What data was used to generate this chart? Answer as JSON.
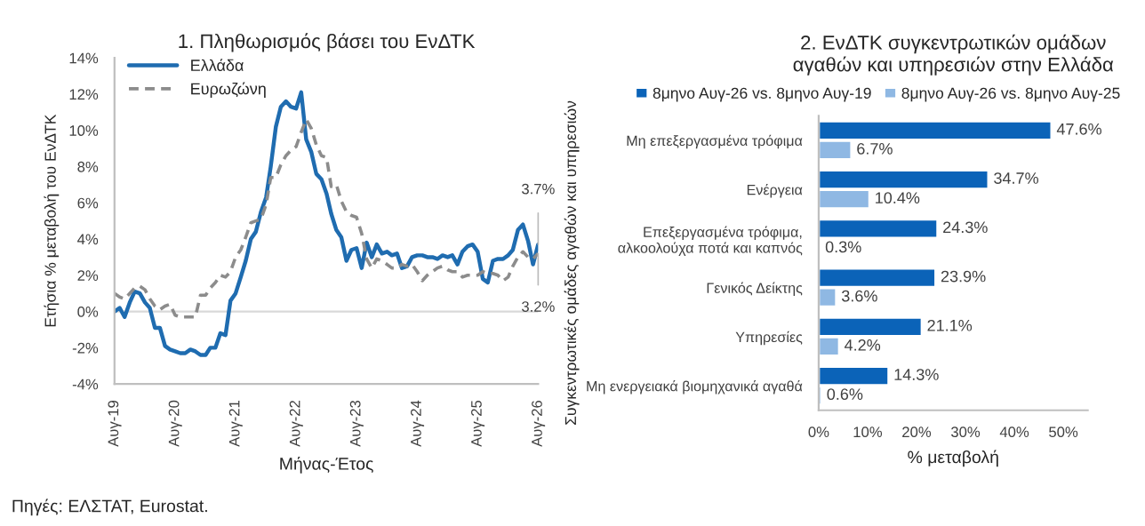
{
  "chart_data": [
    {
      "type": "line",
      "title": "1. Πληθωρισμός βάσει του ΕνΔΤΚ",
      "xlabel": "Μήνας-Έτος",
      "ylabel": "Ετήσια % μεταβολή του ΕνΔΤΚ",
      "x": [
        "2019-08",
        "2019-09",
        "2019-10",
        "2019-11",
        "2019-12",
        "2020-01",
        "2020-02",
        "2020-03",
        "2020-04",
        "2020-05",
        "2020-06",
        "2020-07",
        "2020-08",
        "2020-09",
        "2020-10",
        "2020-11",
        "2020-12",
        "2021-01",
        "2021-02",
        "2021-03",
        "2021-04",
        "2021-05",
        "2021-06",
        "2021-07",
        "2021-08",
        "2021-09",
        "2021-10",
        "2021-11",
        "2021-12",
        "2022-01",
        "2022-02",
        "2022-03",
        "2022-04",
        "2022-05",
        "2022-06",
        "2022-07",
        "2022-08",
        "2022-09",
        "2022-10",
        "2022-11",
        "2022-12",
        "2023-01",
        "2023-02",
        "2023-03",
        "2023-04",
        "2023-05",
        "2023-06",
        "2023-07",
        "2023-08",
        "2023-09",
        "2023-10",
        "2023-11",
        "2023-12",
        "2024-01",
        "2024-02",
        "2024-03",
        "2024-04",
        "2024-05",
        "2024-06",
        "2024-07",
        "2024-08",
        "2024-09",
        "2024-10",
        "2024-11",
        "2024-12",
        "2025-01",
        "2025-02",
        "2025-03",
        "2025-04",
        "2025-05",
        "2025-06",
        "2025-07",
        "2025-08",
        "2025-09",
        "2025-10",
        "2025-11",
        "2025-12",
        "2026-01",
        "2026-02",
        "2026-03",
        "2026-04",
        "2026-05",
        "2026-06",
        "2026-07",
        "2026-08"
      ],
      "series": [
        {
          "name": "Ελλάδα",
          "color": "#1f6cb0",
          "line_style": "solid",
          "values": [
            0.0,
            0.2,
            -0.3,
            0.5,
            1.1,
            1.0,
            0.5,
            0.2,
            -0.9,
            -0.9,
            -1.9,
            -2.1,
            -2.2,
            -2.3,
            -2.3,
            -2.1,
            -2.2,
            -2.4,
            -2.4,
            -2.0,
            -2.0,
            -1.2,
            -1.3,
            0.6,
            1.0,
            1.9,
            2.8,
            4.0,
            4.4,
            5.5,
            6.3,
            8.0,
            10.2,
            11.3,
            11.6,
            11.3,
            11.2,
            12.1,
            9.5,
            8.8,
            7.6,
            7.3,
            6.5,
            5.4,
            4.5,
            4.1,
            2.8,
            3.4,
            3.5,
            2.4,
            3.8,
            3.0,
            3.7,
            3.2,
            3.3,
            3.1,
            3.2,
            2.4,
            2.5,
            3.0,
            3.1,
            3.1,
            3.0,
            3.0,
            2.9,
            3.1,
            3.0,
            3.1,
            2.6,
            3.3,
            3.6,
            3.7,
            3.3,
            1.8,
            1.6,
            2.8,
            2.9,
            2.9,
            3.1,
            3.4,
            4.5,
            4.8,
            3.9,
            2.6,
            3.7
          ]
        },
        {
          "name": "Ευρωζώνη",
          "color": "#8c8c8c",
          "line_style": "dashed",
          "values": [
            1.0,
            0.8,
            0.7,
            1.0,
            1.3,
            1.4,
            1.2,
            0.7,
            0.3,
            0.1,
            0.3,
            0.4,
            -0.2,
            -0.3,
            -0.3,
            -0.3,
            -0.3,
            0.9,
            0.9,
            1.3,
            1.6,
            2.0,
            1.9,
            2.2,
            3.0,
            3.4,
            4.1,
            4.9,
            5.0,
            5.1,
            5.9,
            7.4,
            7.4,
            8.1,
            8.6,
            8.9,
            9.1,
            9.9,
            10.6,
            10.1,
            9.2,
            8.6,
            8.5,
            6.9,
            7.0,
            6.1,
            5.5,
            5.3,
            5.2,
            4.3,
            2.9,
            2.4,
            2.9,
            2.8,
            2.6,
            2.4,
            2.4,
            2.6,
            2.5,
            2.6,
            2.2,
            1.7,
            2.0,
            2.2,
            2.4,
            2.5,
            2.3,
            2.2,
            2.2,
            1.9,
            2.0,
            2.0,
            2.0,
            2.2,
            2.1,
            2.1,
            2.0,
            1.7,
            1.9,
            2.5,
            3.0,
            3.3,
            3.0,
            2.9,
            3.2
          ]
        }
      ],
      "xlim": [
        "2019-08",
        "2026-08"
      ],
      "xticks": [
        {
          "value": "2019-08",
          "label": "Αυγ-19"
        },
        {
          "value": "2020-08",
          "label": "Αυγ-20"
        },
        {
          "value": "2021-08",
          "label": "Αυγ-21"
        },
        {
          "value": "2022-08",
          "label": "Αυγ-22"
        },
        {
          "value": "2023-08",
          "label": "Αυγ-23"
        },
        {
          "value": "2024-08",
          "label": "Αυγ-24"
        },
        {
          "value": "2025-08",
          "label": "Αυγ-25"
        },
        {
          "value": "2026-08",
          "label": "Αυγ-26"
        }
      ],
      "ylim": [
        -4,
        14
      ],
      "yticks": [
        {
          "value": -4,
          "label": "-4%"
        },
        {
          "value": -2,
          "label": "-2%"
        },
        {
          "value": 0,
          "label": "0%"
        },
        {
          "value": 2,
          "label": "2%"
        },
        {
          "value": 4,
          "label": "4%"
        },
        {
          "value": 6,
          "label": "6%"
        },
        {
          "value": 8,
          "label": "8%"
        },
        {
          "value": 10,
          "label": "10%"
        },
        {
          "value": 12,
          "label": "12%"
        },
        {
          "value": 14,
          "label": "14%"
        }
      ],
      "ref_lines": [
        {
          "axis": "y",
          "value": 0,
          "color": "#d9d9d9"
        }
      ],
      "annotations": [
        {
          "text": "3.7%",
          "x": "2026-08",
          "y": 3.7
        },
        {
          "text": "3.2%",
          "x": "2026-08",
          "y": 3.2
        },
        "Πηγές: ΕΛΣΤΑΤ, Eurostat."
      ],
      "grid": false,
      "legend": "top left",
      "marker": "none"
    },
    {
      "type": "bar",
      "orientation": "horizontal",
      "title": "2. ΕνΔΤΚ συγκεντρωτικών ομάδων\nαγαθών και υπηρεσιών στην Ελλάδα",
      "xlabel": "% μεταβολή",
      "ylabel": "Συγκεντρωτικές ομάδες αγαθών και υπηρεσιών",
      "categories": [
        "Μη επεξεργασμένα τρόφιμα",
        "Ενέργεια",
        "Επεξεργασμένα τρόφιμα,\nαλκοολούχα ποτά και καπνός",
        "Γενικός Δείκτης",
        "Υπηρεσίες",
        "Μη ενεργειακά βιομηχανικά αγαθά"
      ],
      "series": [
        {
          "name": "8μηνο Αυγ-26 vs. 8μηνο Αυγ-19",
          "color": "#0b63b8",
          "values": [
            47.6,
            34.7,
            24.3,
            23.9,
            21.1,
            14.3
          ],
          "value_labels": [
            "47.6%",
            "34.7%",
            "24.3%",
            "23.9%",
            "21.1%",
            "14.3%"
          ]
        },
        {
          "name": "8μηνο Αυγ-26 vs. 8μηνο Αυγ-25",
          "color": "#8fb8e3",
          "values": [
            6.7,
            10.4,
            0.3,
            3.6,
            4.2,
            0.6
          ],
          "value_labels": [
            "6.7%",
            "10.4%",
            "0.3%",
            "3.6%",
            "4.2%",
            "0.6%"
          ]
        }
      ],
      "xlim": [
        0,
        55
      ],
      "xticks": [
        {
          "value": 0,
          "label": "0%"
        },
        {
          "value": 10,
          "label": "10%"
        },
        {
          "value": 20,
          "label": "20%"
        },
        {
          "value": 30,
          "label": "30%"
        },
        {
          "value": 40,
          "label": "40%"
        },
        {
          "value": 50,
          "label": "50%"
        }
      ],
      "grid": false,
      "legend": "top"
    }
  ]
}
